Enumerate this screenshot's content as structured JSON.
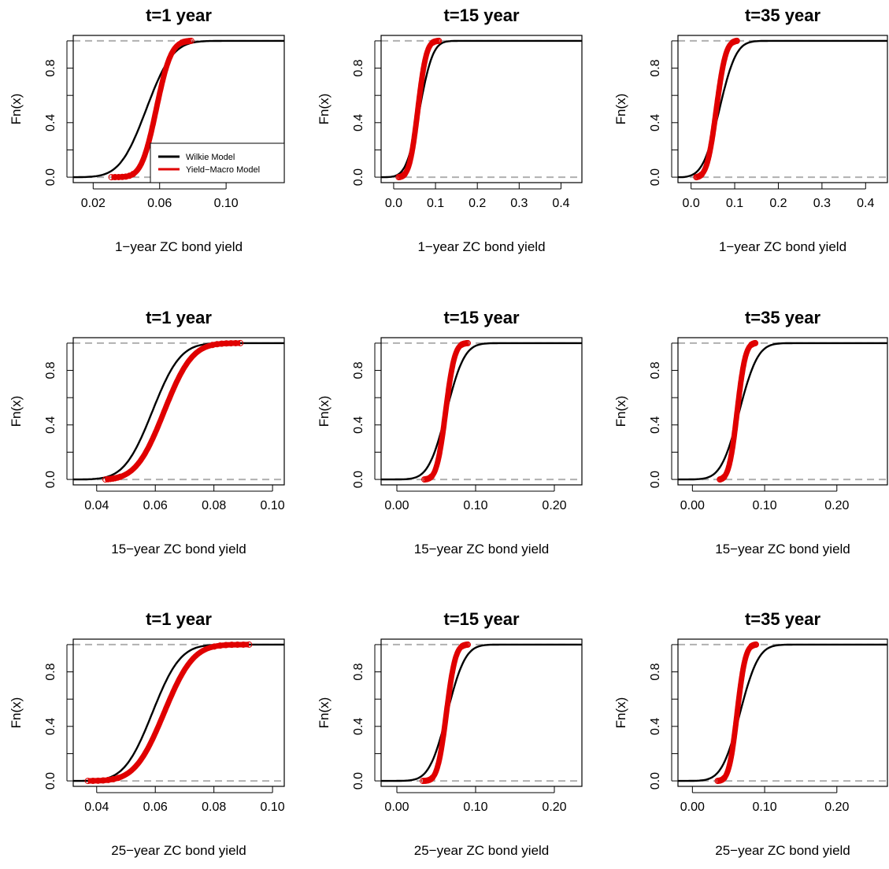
{
  "colors": {
    "wilkie": "#000000",
    "yield_macro": "#e00000",
    "reference_line": "#b0b0b0"
  },
  "chart_data": [
    {
      "type": "line",
      "title": "t=1 year",
      "xlabel": "1−year ZC bond yield",
      "ylabel": "Fn(x)",
      "xlim": [
        0.008,
        0.135
      ],
      "ylim": [
        -0.04,
        1.04
      ],
      "xticks": [
        0.02,
        0.06,
        0.1
      ],
      "xtick_labels": [
        "0.02",
        "0.06",
        "0.10"
      ],
      "yticks": [
        0.0,
        0.4,
        0.8
      ],
      "ytick_labels": [
        "0.0",
        "0.4",
        "0.8"
      ],
      "reference_lines_y": [
        0,
        1
      ],
      "legend": {
        "placement": "bottom-right",
        "entries": [
          "Wilkie Model",
          "Yield−Macro Model"
        ],
        "colors": [
          "#000000",
          "#e00000"
        ]
      },
      "series": [
        {
          "name": "Wilkie Model",
          "color": "#000000",
          "mean": 0.052,
          "sd": 0.0125,
          "min": 0.01,
          "max": 0.128
        },
        {
          "name": "Yield−Macro Model",
          "color": "#e00000",
          "mean": 0.058,
          "sd": 0.007,
          "min": 0.031,
          "max": 0.079
        }
      ]
    },
    {
      "type": "line",
      "title": "t=15 year",
      "xlabel": "1−year ZC bond yield",
      "ylabel": "Fn(x)",
      "xlim": [
        -0.03,
        0.45
      ],
      "ylim": [
        -0.04,
        1.04
      ],
      "xticks": [
        0.0,
        0.1,
        0.2,
        0.3,
        0.4
      ],
      "xtick_labels": [
        "0.0",
        "0.1",
        "0.2",
        "0.3",
        "0.4"
      ],
      "yticks": [
        0.0,
        0.4,
        0.8
      ],
      "ytick_labels": [
        "0.0",
        "0.4",
        "0.8"
      ],
      "reference_lines_y": [
        0,
        1
      ],
      "series": [
        {
          "name": "Wilkie Model",
          "color": "#000000",
          "mean": 0.062,
          "sd": 0.025,
          "min": -0.02,
          "max": 0.44
        },
        {
          "name": "Yield−Macro Model",
          "color": "#e00000",
          "mean": 0.058,
          "sd": 0.016,
          "min": 0.012,
          "max": 0.108
        }
      ]
    },
    {
      "type": "line",
      "title": "t=35 year",
      "xlabel": "1−year ZC bond yield",
      "ylabel": "Fn(x)",
      "xlim": [
        -0.03,
        0.45
      ],
      "ylim": [
        -0.04,
        1.04
      ],
      "xticks": [
        0.0,
        0.1,
        0.2,
        0.3,
        0.4
      ],
      "xtick_labels": [
        "0.0",
        "0.1",
        "0.2",
        "0.3",
        "0.4"
      ],
      "yticks": [
        0.0,
        0.4,
        0.8
      ],
      "ytick_labels": [
        "0.0",
        "0.4",
        "0.8"
      ],
      "reference_lines_y": [
        0,
        1
      ],
      "series": [
        {
          "name": "Wilkie Model",
          "color": "#000000",
          "mean": 0.065,
          "sd": 0.03,
          "min": -0.02,
          "max": 0.44
        },
        {
          "name": "Yield−Macro Model",
          "color": "#e00000",
          "mean": 0.058,
          "sd": 0.017,
          "min": 0.012,
          "max": 0.105
        }
      ]
    },
    {
      "type": "line",
      "title": "t=1 year",
      "xlabel": "15−year ZC bond yield",
      "ylabel": "Fn(x)",
      "xlim": [
        0.032,
        0.104
      ],
      "ylim": [
        -0.04,
        1.04
      ],
      "xticks": [
        0.04,
        0.06,
        0.08,
        0.1
      ],
      "xtick_labels": [
        "0.04",
        "0.06",
        "0.08",
        "0.10"
      ],
      "yticks": [
        0.0,
        0.4,
        0.8
      ],
      "ytick_labels": [
        "0.0",
        "0.4",
        "0.8"
      ],
      "reference_lines_y": [
        0,
        1
      ],
      "series": [
        {
          "name": "Wilkie Model",
          "color": "#000000",
          "mean": 0.059,
          "sd": 0.0075,
          "min": 0.035,
          "max": 0.104
        },
        {
          "name": "Yield−Macro Model",
          "color": "#e00000",
          "mean": 0.063,
          "sd": 0.0075,
          "min": 0.043,
          "max": 0.089
        }
      ]
    },
    {
      "type": "line",
      "title": "t=15 year",
      "xlabel": "15−year ZC bond yield",
      "ylabel": "Fn(x)",
      "xlim": [
        -0.02,
        0.235
      ],
      "ylim": [
        -0.04,
        1.04
      ],
      "xticks": [
        0.0,
        0.1,
        0.2
      ],
      "xtick_labels": [
        "0.00",
        "0.10",
        "0.20"
      ],
      "yticks": [
        0.0,
        0.4,
        0.8
      ],
      "ytick_labels": [
        "0.0",
        "0.4",
        "0.8"
      ],
      "reference_lines_y": [
        0,
        1
      ],
      "series": [
        {
          "name": "Wilkie Model",
          "color": "#000000",
          "mean": 0.063,
          "sd": 0.018,
          "min": -0.01,
          "max": 0.23
        },
        {
          "name": "Yield−Macro Model",
          "color": "#e00000",
          "mean": 0.062,
          "sd": 0.009,
          "min": 0.035,
          "max": 0.09
        }
      ]
    },
    {
      "type": "line",
      "title": "t=35 year",
      "xlabel": "15−year ZC bond yield",
      "ylabel": "Fn(x)",
      "xlim": [
        -0.02,
        0.27
      ],
      "ylim": [
        -0.04,
        1.04
      ],
      "xticks": [
        0.0,
        0.1,
        0.2
      ],
      "xtick_labels": [
        "0.00",
        "0.10",
        "0.20"
      ],
      "yticks": [
        0.0,
        0.4,
        0.8
      ],
      "ytick_labels": [
        "0.0",
        "0.4",
        "0.8"
      ],
      "reference_lines_y": [
        0,
        1
      ],
      "series": [
        {
          "name": "Wilkie Model",
          "color": "#000000",
          "mean": 0.065,
          "sd": 0.02,
          "min": -0.01,
          "max": 0.265
        },
        {
          "name": "Yield−Macro Model",
          "color": "#e00000",
          "mean": 0.062,
          "sd": 0.009,
          "min": 0.038,
          "max": 0.087
        }
      ]
    },
    {
      "type": "line",
      "title": "t=1 year",
      "xlabel": "25−year ZC bond yield",
      "ylabel": "Fn(x)",
      "xlim": [
        0.032,
        0.104
      ],
      "ylim": [
        -0.04,
        1.04
      ],
      "xticks": [
        0.04,
        0.06,
        0.08,
        0.1
      ],
      "xtick_labels": [
        "0.04",
        "0.06",
        "0.08",
        "0.10"
      ],
      "yticks": [
        0.0,
        0.4,
        0.8
      ],
      "ytick_labels": [
        "0.0",
        "0.4",
        "0.8"
      ],
      "reference_lines_y": [
        0,
        1
      ],
      "series": [
        {
          "name": "Wilkie Model",
          "color": "#000000",
          "mean": 0.059,
          "sd": 0.0075,
          "min": 0.035,
          "max": 0.104
        },
        {
          "name": "Yield−Macro Model",
          "color": "#e00000",
          "mean": 0.063,
          "sd": 0.0078,
          "min": 0.037,
          "max": 0.092
        }
      ]
    },
    {
      "type": "line",
      "title": "t=15 year",
      "xlabel": "25−year ZC bond yield",
      "ylabel": "Fn(x)",
      "xlim": [
        -0.02,
        0.235
      ],
      "ylim": [
        -0.04,
        1.04
      ],
      "xticks": [
        0.0,
        0.1,
        0.2
      ],
      "xtick_labels": [
        "0.00",
        "0.10",
        "0.20"
      ],
      "yticks": [
        0.0,
        0.4,
        0.8
      ],
      "ytick_labels": [
        "0.0",
        "0.4",
        "0.8"
      ],
      "reference_lines_y": [
        0,
        1
      ],
      "series": [
        {
          "name": "Wilkie Model",
          "color": "#000000",
          "mean": 0.064,
          "sd": 0.018,
          "min": -0.01,
          "max": 0.23
        },
        {
          "name": "Yield−Macro Model",
          "color": "#e00000",
          "mean": 0.063,
          "sd": 0.009,
          "min": 0.033,
          "max": 0.09
        }
      ]
    },
    {
      "type": "line",
      "title": "t=35 year",
      "xlabel": "25−year ZC bond yield",
      "ylabel": "Fn(x)",
      "xlim": [
        -0.02,
        0.27
      ],
      "ylim": [
        -0.04,
        1.04
      ],
      "xticks": [
        0.0,
        0.1,
        0.2
      ],
      "xtick_labels": [
        "0.00",
        "0.10",
        "0.20"
      ],
      "yticks": [
        0.0,
        0.4,
        0.8
      ],
      "ytick_labels": [
        "0.0",
        "0.4",
        "0.8"
      ],
      "reference_lines_y": [
        0,
        1
      ],
      "series": [
        {
          "name": "Wilkie Model",
          "color": "#000000",
          "mean": 0.066,
          "sd": 0.02,
          "min": -0.01,
          "max": 0.265
        },
        {
          "name": "Yield−Macro Model",
          "color": "#e00000",
          "mean": 0.062,
          "sd": 0.009,
          "min": 0.035,
          "max": 0.088
        }
      ]
    }
  ]
}
